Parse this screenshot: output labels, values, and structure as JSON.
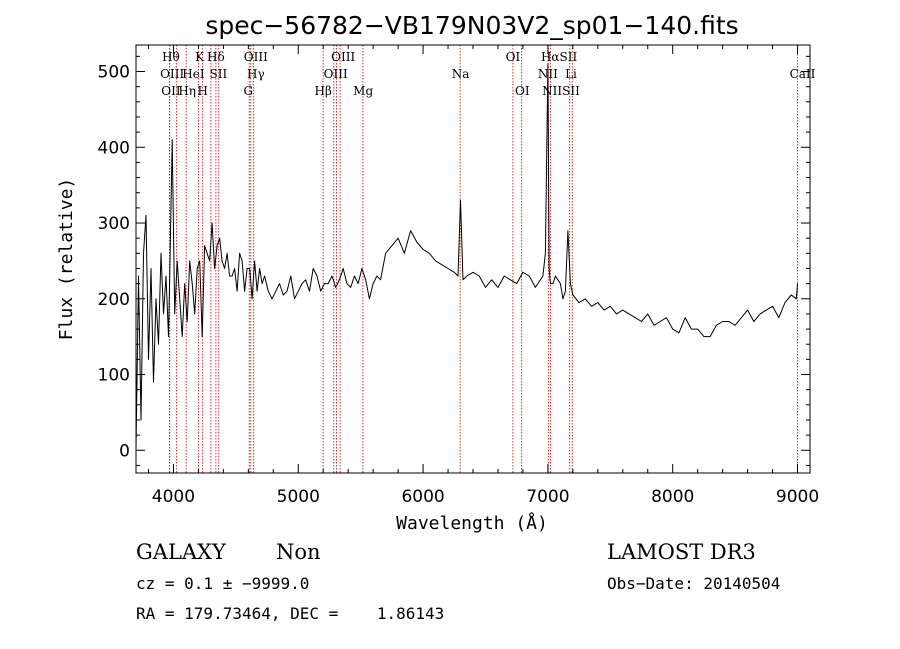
{
  "chart_data": {
    "type": "line",
    "title": "spec−56782−VB179N03V2_sp01−140.fits",
    "xlabel": "Wavelength (Å)",
    "ylabel": "Flux (relative)",
    "xlim": [
      3700,
      9100
    ],
    "ylim": [
      -30,
      535
    ],
    "xticks": [
      4000,
      5000,
      6000,
      7000,
      8000,
      9000
    ],
    "xtick_labels": [
      "4000",
      "5000",
      "6000",
      "7000",
      "8000",
      "9000"
    ],
    "yticks": [
      0,
      100,
      200,
      300,
      400,
      500
    ],
    "ytick_labels": [
      "0",
      "100",
      "200",
      "300",
      "400",
      "500"
    ],
    "series": [
      {
        "color": "#000000",
        "x": [
          3700,
          3720,
          3740,
          3760,
          3780,
          3800,
          3820,
          3840,
          3860,
          3880,
          3900,
          3920,
          3940,
          3960,
          3975,
          3990,
          4010,
          4030,
          4050,
          4070,
          4090,
          4110,
          4130,
          4150,
          4170,
          4190,
          4210,
          4230,
          4250,
          4270,
          4290,
          4310,
          4330,
          4350,
          4370,
          4390,
          4410,
          4430,
          4450,
          4470,
          4490,
          4510,
          4530,
          4550,
          4570,
          4590,
          4610,
          4630,
          4650,
          4670,
          4690,
          4710,
          4730,
          4760,
          4790,
          4820,
          4850,
          4880,
          4910,
          4940,
          4970,
          5000,
          5030,
          5060,
          5090,
          5120,
          5150,
          5180,
          5210,
          5240,
          5270,
          5300,
          5330,
          5360,
          5390,
          5420,
          5450,
          5480,
          5510,
          5540,
          5570,
          5600,
          5630,
          5660,
          5700,
          5750,
          5800,
          5850,
          5900,
          5950,
          6000,
          6050,
          6100,
          6150,
          6200,
          6250,
          6280,
          6300,
          6320,
          6350,
          6400,
          6450,
          6500,
          6550,
          6600,
          6650,
          6700,
          6750,
          6800,
          6850,
          6900,
          6940,
          6960,
          6980,
          7000,
          7010,
          7020,
          7040,
          7060,
          7080,
          7100,
          7120,
          7140,
          7160,
          7180,
          7200,
          7250,
          7300,
          7350,
          7400,
          7450,
          7500,
          7550,
          7600,
          7650,
          7700,
          7750,
          7800,
          7850,
          7900,
          7950,
          8000,
          8050,
          8100,
          8150,
          8200,
          8250,
          8300,
          8350,
          8400,
          8450,
          8500,
          8550,
          8600,
          8650,
          8700,
          8750,
          8800,
          8850,
          8900,
          8950,
          8990,
          9000
        ],
        "values": [
          0,
          230,
          40,
          260,
          310,
          120,
          240,
          90,
          200,
          140,
          260,
          180,
          230,
          150,
          270,
          410,
          180,
          250,
          200,
          150,
          220,
          170,
          250,
          220,
          180,
          240,
          250,
          150,
          270,
          260,
          250,
          300,
          240,
          270,
          280,
          250,
          240,
          260,
          230,
          230,
          240,
          210,
          260,
          250,
          210,
          240,
          240,
          200,
          250,
          210,
          240,
          220,
          230,
          210,
          200,
          210,
          220,
          205,
          210,
          230,
          200,
          210,
          220,
          225,
          210,
          240,
          230,
          210,
          220,
          220,
          230,
          215,
          225,
          240,
          220,
          215,
          230,
          220,
          240,
          225,
          200,
          220,
          230,
          225,
          260,
          270,
          280,
          260,
          290,
          275,
          265,
          260,
          250,
          245,
          240,
          235,
          230,
          330,
          225,
          230,
          235,
          230,
          215,
          225,
          215,
          230,
          225,
          220,
          235,
          230,
          215,
          225,
          230,
          260,
          510,
          240,
          220,
          220,
          230,
          225,
          220,
          200,
          210,
          290,
          220,
          205,
          195,
          200,
          190,
          195,
          185,
          190,
          180,
          185,
          180,
          175,
          170,
          180,
          165,
          170,
          175,
          160,
          155,
          175,
          160,
          160,
          150,
          150,
          165,
          170,
          170,
          165,
          175,
          185,
          170,
          180,
          185,
          190,
          175,
          195,
          205,
          200,
          220
        ]
      }
    ],
    "emission_lines": [
      {
        "wl": 3969,
        "label": "OII",
        "label2": "OIII"
      },
      {
        "wl": 3970,
        "label": "Hθ"
      },
      {
        "wl": 4102,
        "label": "Hη"
      },
      {
        "wl": 4026,
        "label": "HeI"
      },
      {
        "wl": 4234,
        "label": "K"
      },
      {
        "wl": 4200,
        "label": "H"
      },
      {
        "wl": 4340,
        "label": "Hδ"
      },
      {
        "wl": 4300,
        "label": "SII"
      },
      {
        "wl": 4363,
        "label": ""
      },
      {
        "wl": 4607,
        "label": "OIII"
      },
      {
        "wl": 4620,
        "label": "Hγ"
      },
      {
        "wl": 4640,
        "label": "G"
      },
      {
        "wl": 5199,
        "label": "Hβ"
      },
      {
        "wl": 5285,
        "label": "OIII"
      },
      {
        "wl": 5306,
        "label": "OII"
      },
      {
        "wl": 5335,
        "label": ""
      },
      {
        "wl": 5518,
        "label": "Mg"
      },
      {
        "wl": 6297,
        "label": "Na"
      },
      {
        "wl": 6720,
        "label": "OI"
      },
      {
        "wl": 6790,
        "label": "OI"
      },
      {
        "wl": 7003,
        "label": "Hα"
      },
      {
        "wl": 7020,
        "label": "NII"
      },
      {
        "wl": 7175,
        "label": "SII"
      },
      {
        "wl": 7195,
        "label": "Li"
      },
      {
        "wl": 9000,
        "label": "CaII"
      }
    ],
    "line_labels": [
      {
        "text": "Hθ",
        "wl": 3980,
        "row": 0
      },
      {
        "text": "K",
        "wl": 4210,
        "row": 0
      },
      {
        "text": "Hδ",
        "wl": 4340,
        "row": 0
      },
      {
        "text": "OIII",
        "wl": 4660,
        "row": 0
      },
      {
        "text": "OIII",
        "wl": 5360,
        "row": 0
      },
      {
        "text": "OI",
        "wl": 6720,
        "row": 0
      },
      {
        "text": "HαSII",
        "wl": 7090,
        "row": 0
      },
      {
        "text": "OIII",
        "wl": 3990,
        "row": 1
      },
      {
        "text": "HeI",
        "wl": 4160,
        "row": 1
      },
      {
        "text": "SII",
        "wl": 4360,
        "row": 1
      },
      {
        "text": "Hγ",
        "wl": 4660,
        "row": 1
      },
      {
        "text": "OIII",
        "wl": 5300,
        "row": 1
      },
      {
        "text": "Na",
        "wl": 6300,
        "row": 1
      },
      {
        "text": "NII",
        "wl": 7000,
        "row": 1
      },
      {
        "text": "Li",
        "wl": 7185,
        "row": 1
      },
      {
        "text": "CaII",
        "wl": 9040,
        "row": 1
      },
      {
        "text": "OII",
        "wl": 3980,
        "row": 2
      },
      {
        "text": "Hη",
        "wl": 4110,
        "row": 2
      },
      {
        "text": "H",
        "wl": 4235,
        "row": 2
      },
      {
        "text": "G",
        "wl": 4600,
        "row": 2
      },
      {
        "text": "Hβ",
        "wl": 5200,
        "row": 2
      },
      {
        "text": "Mg",
        "wl": 5520,
        "row": 2
      },
      {
        "text": "OI",
        "wl": 6795,
        "row": 2
      },
      {
        "text": "NIISII",
        "wl": 7105,
        "row": 2
      }
    ]
  },
  "info": {
    "class_label": "GALAXY",
    "subclass_label": "Non",
    "survey_label": "LAMOST DR3",
    "redshift_line": "cz = 0.1 ± −9999.0",
    "obsdate_line": "Obs−Date: 20140504",
    "coords_line": "RA = 179.73464, DEC =    1.86143"
  }
}
